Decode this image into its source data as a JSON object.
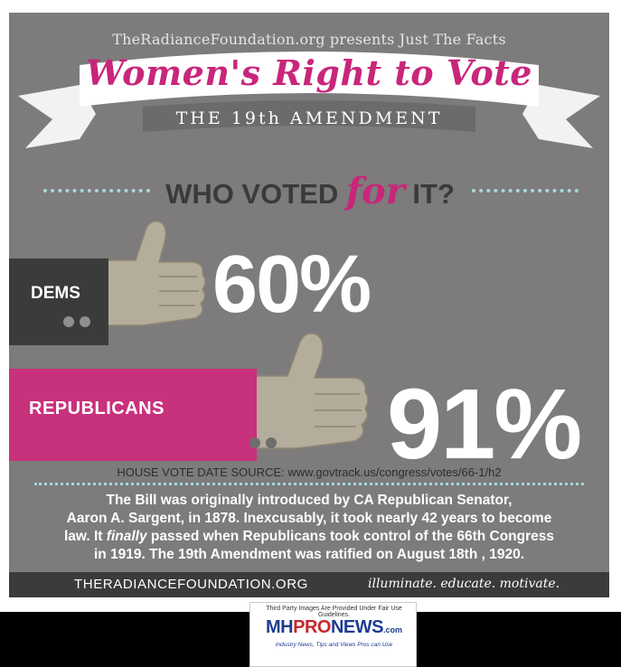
{
  "header": {
    "presents": "TheRadianceFoundation.org presents Just The Facts",
    "title": "Women's Right to Vote",
    "subtitle": "THE 19th AMENDMENT"
  },
  "question": {
    "before": "WHO VOTED ",
    "emphasis": "for",
    "after": " IT?"
  },
  "chart_data": {
    "type": "bar",
    "categories": [
      "DEMS",
      "REPUBLICANS"
    ],
    "values": [
      60,
      91
    ],
    "value_labels": [
      "60%",
      "91%"
    ]
  },
  "source": "HOUSE VOTE DATE SOURCE: www.govtrack.us/congress/votes/66-1/h2",
  "body": {
    "line1": "The Bill was originally introduced by CA Republican Senator,",
    "line2": "Aaron A. Sargent, in 1878. Inexcusably, it took nearly 42 years to become",
    "line3_a": "law. It ",
    "line3_em": "finally",
    "line3_b": " passed when Republicans took control of the 66th Congress",
    "line4": "in 1919. The 19th Amendment was ratified on August 18th , 1920."
  },
  "footer": {
    "site": "THERADIANCEFOUNDATION.ORG",
    "tagline": "illuminate. educate. motivate."
  },
  "mhpronews": {
    "notice": "Third Party Images Are Provided Under Fair Use Guidelines.",
    "logo_mh": "MH",
    "logo_pro": "PRO",
    "logo_news": "NEWS",
    "logo_com": ".com",
    "tagline": "Industry News, Tips and Views Pros can Use"
  },
  "colors": {
    "background": "#7d7b7b",
    "accent_pink": "#c8267a",
    "dark_gray": "#3b3b3b",
    "hand": "#b4ad9b",
    "dots": "#a7d7da"
  }
}
